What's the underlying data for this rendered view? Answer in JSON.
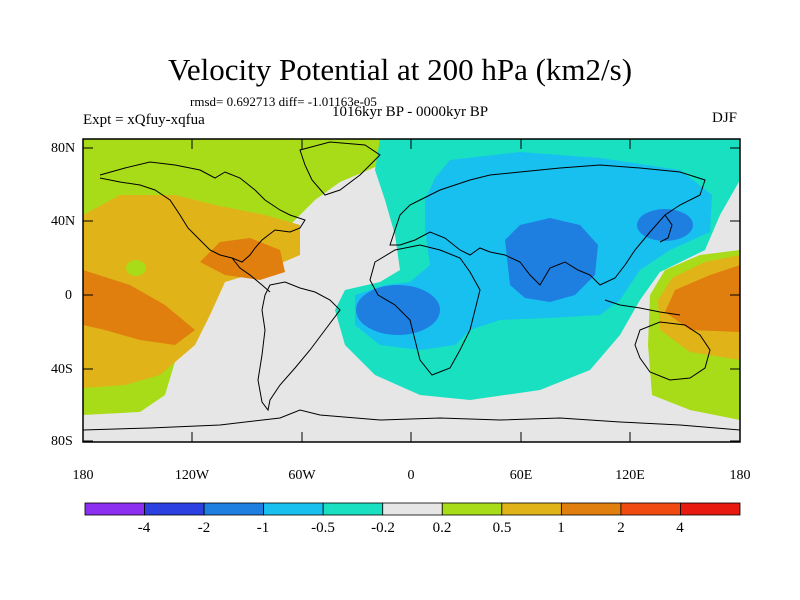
{
  "title": "Velocity Potential at 200 hPa (km2/s)",
  "stats": "rmsd= 0.692713 diff= -1.01163e-05",
  "left_label": "Expt = xQfuy-xqfua",
  "center_label": "1016kyr BP - 0000kyr BP",
  "right_label": "DJF",
  "lat_labels": [
    "80N",
    "40N",
    "0",
    "40S",
    "80S"
  ],
  "lon_labels": [
    "180",
    "120W",
    "60W",
    "0",
    "60E",
    "120E",
    "180"
  ],
  "colorbar": {
    "colors": [
      "#8c2ff0",
      "#2c3fe0",
      "#1e7fe0",
      "#18c0f0",
      "#18e0c0",
      "#e6e6e6",
      "#a8dc18",
      "#e0b418",
      "#e07e0e",
      "#f04a10",
      "#e81a10"
    ],
    "labels": [
      "-4",
      "-2",
      "-1",
      "-0.5",
      "-0.2",
      "0.2",
      "0.5",
      "1",
      "2",
      "4"
    ]
  }
}
